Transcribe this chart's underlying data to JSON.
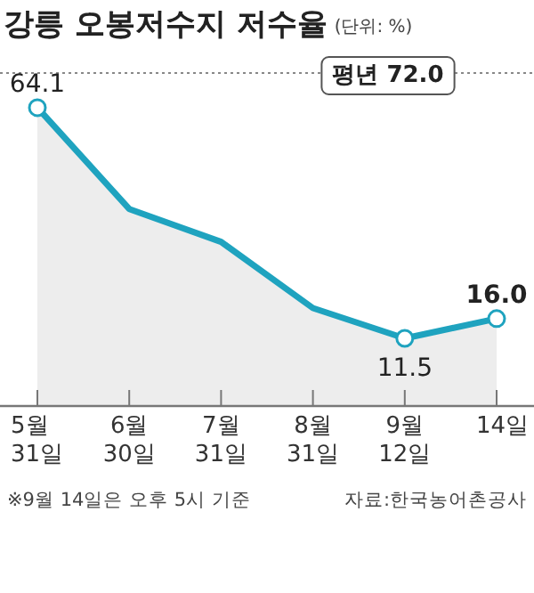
{
  "chart_data": {
    "type": "area",
    "title": "강릉 오봉저수지 저수율",
    "subtitle": "(단위: %)",
    "categories": [
      "5월\n31일",
      "6월\n30일",
      "7월\n31일",
      "8월\n31일",
      "9월\n12일",
      "14일"
    ],
    "series": [
      {
        "color": "#1fa3bf",
        "values": [
          64.1,
          41.0,
          33.5,
          18.4,
          11.5,
          16.0
        ],
        "value_labels": [
          "64.1",
          null,
          null,
          null,
          "11.5",
          "16.0"
        ]
      }
    ],
    "marker": "circle",
    "ref_lines": [
      {
        "axis": "y",
        "value": 72.0,
        "label": "평년 72.0",
        "color": "#888888",
        "line_style": "dotted"
      }
    ],
    "annotations": [
      "※9월 14일은 오후 5시 기준",
      "자료:한국농어촌공사"
    ]
  }
}
